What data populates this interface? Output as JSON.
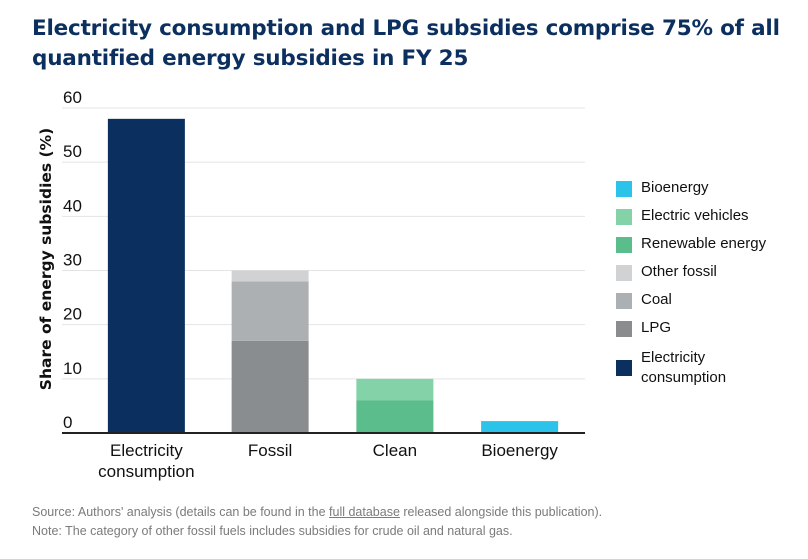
{
  "chart_data": {
    "type": "bar",
    "stacked": true,
    "title": "Electricity consumption and LPG subsidies comprise 75% of all quantified energy subsidies in FY 25",
    "xlabel": "",
    "ylabel": "Share of energy subsidies (%)",
    "ylim": [
      0,
      60
    ],
    "yticks": [
      0,
      10,
      20,
      30,
      40,
      50,
      60
    ],
    "grid": true,
    "legend_position": "right",
    "categories": [
      "Electricity consumption",
      "Fossil",
      "Clean",
      "Bioenergy"
    ],
    "category_labels": [
      [
        "Electricity",
        "consumption"
      ],
      [
        "Fossil"
      ],
      [
        "Clean"
      ],
      [
        "Bioenergy"
      ]
    ],
    "series": [
      {
        "name": "Electricity consumption",
        "color": "#0b2f5f",
        "values": [
          58,
          0,
          0,
          0
        ]
      },
      {
        "name": "LPG",
        "color": "#8a8d8f",
        "values": [
          0,
          17,
          0,
          0
        ]
      },
      {
        "name": "Coal",
        "color": "#adb0b2",
        "values": [
          0,
          11,
          0,
          0
        ]
      },
      {
        "name": "Other fossil",
        "color": "#d1d2d3",
        "values": [
          0,
          2,
          0,
          0
        ]
      },
      {
        "name": "Renewable energy",
        "color": "#5bbd8b",
        "values": [
          0,
          0,
          6,
          0
        ]
      },
      {
        "name": "Electric vehicles",
        "color": "#84d3a8",
        "values": [
          0,
          0,
          4,
          0
        ]
      },
      {
        "name": "Bioenergy",
        "color": "#2cc3eb",
        "values": [
          0,
          0,
          0,
          2.2
        ]
      }
    ]
  },
  "legend": [
    {
      "label": "Bioenergy",
      "color": "#2cc3eb"
    },
    {
      "label": "Electric vehicles",
      "color": "#84d3a8"
    },
    {
      "label": "Renewable energy",
      "color": "#5bbd8b"
    },
    {
      "label": "Other fossil",
      "color": "#d1d2d3"
    },
    {
      "label": "Coal",
      "color": "#adb0b2"
    },
    {
      "label": "LPG",
      "color": "#8a8d8f"
    },
    {
      "label": "Electricity\nconsumption",
      "color": "#0b2f5f"
    }
  ],
  "footer": {
    "source_prefix": "Source: Authors' analysis (details can be found in the ",
    "source_link": "full database",
    "source_suffix": " released alongside this publication).",
    "note": "Note: The category of other fossil fuels includes subsidies for crude oil and natural gas."
  }
}
